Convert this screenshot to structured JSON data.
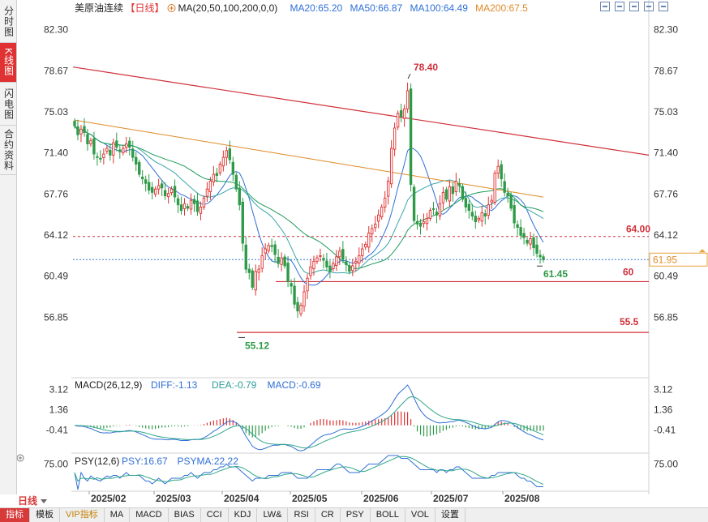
{
  "sidebar": {
    "tabs": [
      {
        "label": "分时图",
        "active": false
      },
      {
        "label": "K线图",
        "active": true
      },
      {
        "label": "闪电图",
        "active": false
      },
      {
        "label": "合约资料",
        "active": false
      }
    ]
  },
  "header": {
    "instrument": "美原油连续",
    "period_tag": "【日线】",
    "ma_params": "MA(20,50,100,200,0,0)",
    "ma_values": [
      {
        "label": "MA20:65.20",
        "color": "#2f6fd6"
      },
      {
        "label": "MA50:66.87",
        "color": "#2f6fd6"
      },
      {
        "label": "MA100:64.49",
        "color": "#2f6fd6"
      },
      {
        "label": "MA200:67.5",
        "color": "#e08a2a"
      }
    ]
  },
  "toolbar": {
    "icons": [
      "zoom-in-icon",
      "zoom-out-icon",
      "fit-icon",
      "prev-icon",
      "next-icon"
    ]
  },
  "chart_data": [
    {
      "type": "candlestick",
      "title": "美原油连续【日线】",
      "ylim": [
        53.5,
        83.5
      ],
      "y_ticks": [
        "82.30",
        "78.67",
        "75.03",
        "71.40",
        "67.76",
        "64.12",
        "60.49",
        "56.85"
      ],
      "x_ticks": [
        "2025/02",
        "2025/03",
        "2025/04",
        "2025/05",
        "2025/06",
        "2025/07",
        "2025/08"
      ],
      "current_price": "61.95",
      "annotations": {
        "high_label": "78.40",
        "low_label": "55.12",
        "last_low_label": "61.45",
        "line_64_label": "64.00",
        "line_60_label": "60",
        "line_55_label": "55.5"
      },
      "levels": [
        64.0,
        60.0,
        55.5
      ],
      "colors": {
        "up": "#e03232",
        "down": "#2f9a48",
        "ma20": "#2f6fd6",
        "ma50": "#3aa6a6",
        "ma100": "#1f9a5a",
        "ma200": "#e08a2a",
        "trend": "#d0303a"
      },
      "closes": [
        73.8,
        73.0,
        73.5,
        73.2,
        72.2,
        72.5,
        71.3,
        71.0,
        70.9,
        71.3,
        71.8,
        71.2,
        72.3,
        71.9,
        71.5,
        71.8,
        72.2,
        71.9,
        71.0,
        70.4,
        69.5,
        69.1,
        68.7,
        68.1,
        67.9,
        68.2,
        68.5,
        68.3,
        67.6,
        67.8,
        68.2,
        67.5,
        66.8,
        66.3,
        66.9,
        66.5,
        67.2,
        66.9,
        66.2,
        66.6,
        67.4,
        68.2,
        68.9,
        69.5,
        69.4,
        70.4,
        71.0,
        71.6,
        70.8,
        69.5,
        68.2,
        66.8,
        63.4,
        61.1,
        60.8,
        59.5,
        60.9,
        61.1,
        62.3,
        62.9,
        63.2,
        63.1,
        62.4,
        61.6,
        62.1,
        61.4,
        60.0,
        59.6,
        58.0,
        57.4,
        57.9,
        59.1,
        60.3,
        61.3,
        61.8,
        62.1,
        62.3,
        61.9,
        61.3,
        60.9,
        61.6,
        62.2,
        62.7,
        62.0,
        61.5,
        60.9,
        61.4,
        61.8,
        62.3,
        62.9,
        63.3,
        64.3,
        64.7,
        65.1,
        65.9,
        66.6,
        67.4,
        68.9,
        71.8,
        73.6,
        74.9,
        74.6,
        75.3,
        76.9,
        68.6,
        65.4,
        65.1,
        64.9,
        65.3,
        65.6,
        66.3,
        66.4,
        65.9,
        66.9,
        67.9,
        67.3,
        68.4,
        67.8,
        68.9,
        68.5,
        67.3,
        66.6,
        66.3,
        65.8,
        65.3,
        65.6,
        66.1,
        65.8,
        66.8,
        67.2,
        69.6,
        70.2,
        69.1,
        67.9,
        67.6,
        66.5,
        65.2,
        64.8,
        64.1,
        63.9,
        63.4,
        63.8,
        63.0,
        62.5,
        62.2,
        61.95
      ]
    },
    {
      "type": "line",
      "title": "MACD(26,12,9)",
      "series": [
        {
          "name": "DIFF:-1.13"
        },
        {
          "name": "DEA:-0.79"
        },
        {
          "name": "MACD:-0.69"
        }
      ],
      "y_ticks": [
        "3.12",
        "1.36",
        "-0.41"
      ],
      "ylim": [
        -2.2,
        4.0
      ]
    },
    {
      "type": "line",
      "title": "PSY(12,6)",
      "series": [
        {
          "name": "PSY:16.67"
        },
        {
          "name": "PSYMA:22.22"
        }
      ],
      "y_ticks": [
        "75.00"
      ],
      "ylim": [
        0,
        100
      ]
    }
  ],
  "bottom": {
    "timeframe": "日线",
    "tabs": [
      "指标",
      "模板",
      "VIP指标",
      "MA",
      "MACD",
      "BIAS",
      "CCI",
      "KDJ",
      "LW&",
      "RSI",
      "CR",
      "PSY",
      "BOLL",
      "VOL",
      "设置"
    ]
  }
}
